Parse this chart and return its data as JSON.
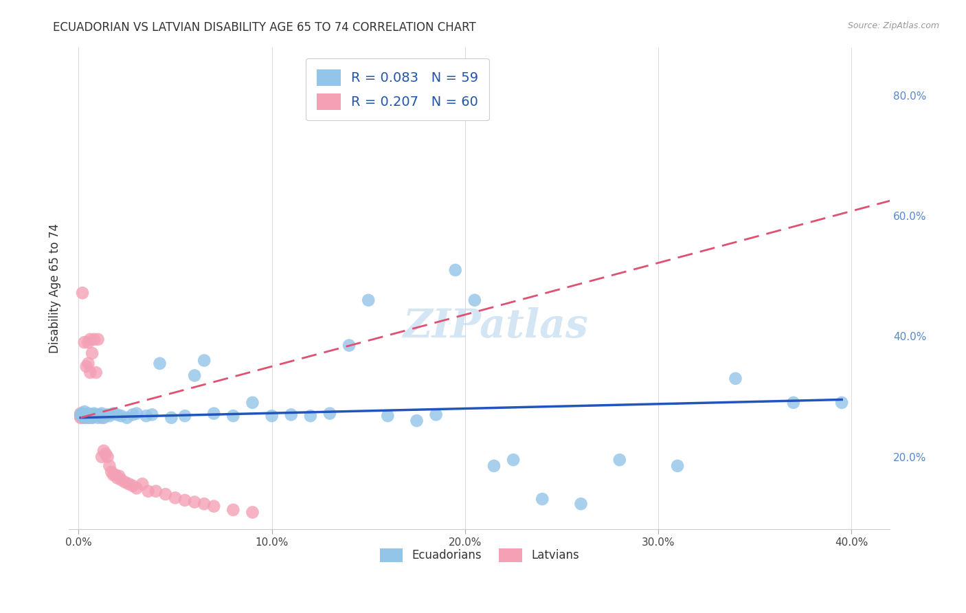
{
  "title": "ECUADORIAN VS LATVIAN DISABILITY AGE 65 TO 74 CORRELATION CHART",
  "source": "Source: ZipAtlas.com",
  "ylabel": "Disability Age 65 to 74",
  "xlabel_ticks": [
    "0.0%",
    "10.0%",
    "20.0%",
    "30.0%",
    "40.0%"
  ],
  "xlabel_vals": [
    0.0,
    0.1,
    0.2,
    0.3,
    0.4
  ],
  "ylabel_ticks_right": [
    "20.0%",
    "40.0%",
    "60.0%",
    "80.0%"
  ],
  "ylabel_vals_right": [
    0.2,
    0.4,
    0.6,
    0.8
  ],
  "xlim": [
    -0.005,
    0.42
  ],
  "ylim": [
    0.08,
    0.88
  ],
  "ecuadorian_R": 0.083,
  "ecuadorian_N": 59,
  "latvian_R": 0.207,
  "latvian_N": 60,
  "blue_color": "#92c5e8",
  "pink_color": "#f4a0b5",
  "blue_line_color": "#2255bb",
  "pink_line_color": "#e05070",
  "watermark": "ZIPatlas",
  "ecu_x": [
    0.001,
    0.002,
    0.002,
    0.003,
    0.003,
    0.004,
    0.004,
    0.005,
    0.005,
    0.006,
    0.006,
    0.007,
    0.007,
    0.008,
    0.008,
    0.009,
    0.01,
    0.01,
    0.011,
    0.012,
    0.013,
    0.015,
    0.016,
    0.018,
    0.02,
    0.022,
    0.025,
    0.028,
    0.03,
    0.035,
    0.038,
    0.042,
    0.048,
    0.055,
    0.06,
    0.065,
    0.07,
    0.08,
    0.09,
    0.1,
    0.11,
    0.12,
    0.13,
    0.14,
    0.15,
    0.16,
    0.175,
    0.185,
    0.195,
    0.205,
    0.215,
    0.225,
    0.24,
    0.26,
    0.28,
    0.31,
    0.34,
    0.37,
    0.395
  ],
  "ecu_y": [
    0.27,
    0.268,
    0.272,
    0.265,
    0.275,
    0.268,
    0.27,
    0.265,
    0.272,
    0.268,
    0.27,
    0.265,
    0.268,
    0.272,
    0.27,
    0.268,
    0.265,
    0.27,
    0.268,
    0.272,
    0.265,
    0.27,
    0.268,
    0.272,
    0.27,
    0.268,
    0.265,
    0.27,
    0.272,
    0.268,
    0.27,
    0.355,
    0.265,
    0.268,
    0.335,
    0.36,
    0.272,
    0.268,
    0.29,
    0.268,
    0.27,
    0.268,
    0.272,
    0.385,
    0.46,
    0.268,
    0.26,
    0.27,
    0.51,
    0.46,
    0.185,
    0.195,
    0.13,
    0.122,
    0.195,
    0.185,
    0.33,
    0.29,
    0.29
  ],
  "lat_x": [
    0.001,
    0.001,
    0.001,
    0.002,
    0.002,
    0.002,
    0.002,
    0.003,
    0.003,
    0.003,
    0.003,
    0.004,
    0.004,
    0.004,
    0.005,
    0.005,
    0.005,
    0.005,
    0.006,
    0.006,
    0.006,
    0.007,
    0.007,
    0.007,
    0.008,
    0.008,
    0.008,
    0.009,
    0.009,
    0.01,
    0.01,
    0.011,
    0.011,
    0.012,
    0.012,
    0.013,
    0.014,
    0.015,
    0.016,
    0.017,
    0.018,
    0.019,
    0.02,
    0.021,
    0.022,
    0.024,
    0.026,
    0.028,
    0.03,
    0.033,
    0.036,
    0.04,
    0.045,
    0.05,
    0.055,
    0.06,
    0.065,
    0.07,
    0.08,
    0.09
  ],
  "lat_y": [
    0.268,
    0.272,
    0.265,
    0.27,
    0.268,
    0.472,
    0.265,
    0.268,
    0.39,
    0.265,
    0.27,
    0.268,
    0.35,
    0.265,
    0.355,
    0.39,
    0.268,
    0.265,
    0.395,
    0.34,
    0.268,
    0.268,
    0.372,
    0.265,
    0.268,
    0.395,
    0.27,
    0.268,
    0.34,
    0.268,
    0.395,
    0.268,
    0.27,
    0.265,
    0.2,
    0.21,
    0.205,
    0.2,
    0.185,
    0.175,
    0.17,
    0.17,
    0.165,
    0.168,
    0.162,
    0.158,
    0.155,
    0.152,
    0.148,
    0.155,
    0.143,
    0.143,
    0.138,
    0.132,
    0.128,
    0.125,
    0.122,
    0.118,
    0.112,
    0.108
  ],
  "ecu_trend_x": [
    0.001,
    0.395
  ],
  "ecu_trend_y": [
    0.265,
    0.295
  ],
  "lat_trend_x": [
    0.001,
    0.42
  ],
  "lat_trend_y": [
    0.265,
    0.625
  ]
}
